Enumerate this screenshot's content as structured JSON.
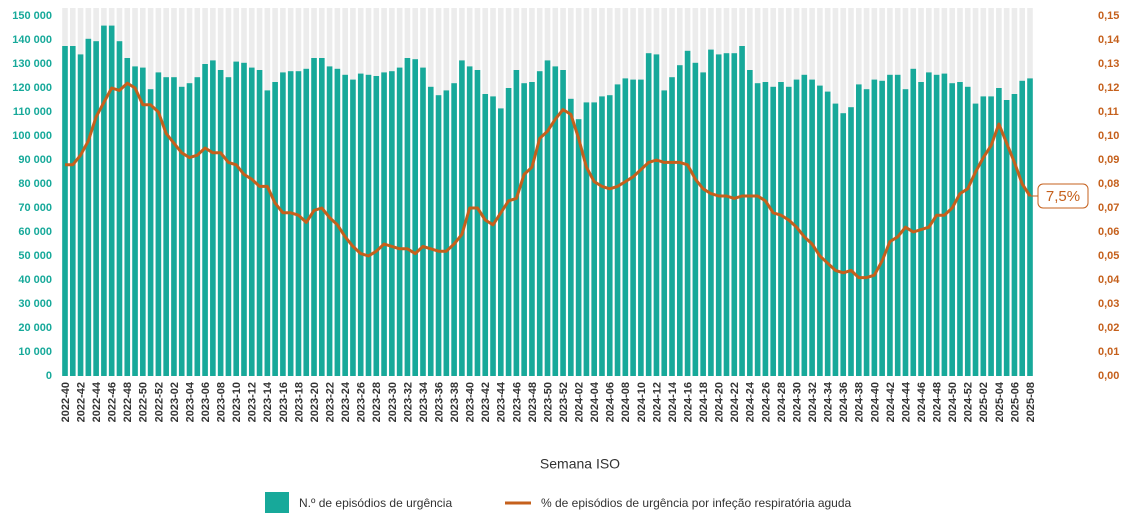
{
  "chart_data": {
    "type": "bar-line",
    "x_label": "Semana ISO",
    "categories": [
      "2022-40",
      null,
      "2022-42",
      null,
      "2022-44",
      null,
      "2022-46",
      null,
      "2022-48",
      null,
      "2022-50",
      null,
      "2022-52",
      null,
      "2023-02",
      null,
      "2023-04",
      null,
      "2023-06",
      null,
      "2023-08",
      null,
      "2023-10",
      null,
      "2023-12",
      null,
      "2023-14",
      null,
      "2023-16",
      null,
      "2023-18",
      null,
      "2023-20",
      null,
      "2023-22",
      null,
      "2023-24",
      null,
      "2023-26",
      null,
      "2023-28",
      null,
      "2023-30",
      null,
      "2023-32",
      null,
      "2023-34",
      null,
      "2023-36",
      null,
      "2023-38",
      null,
      "2023-40",
      null,
      "2023-42",
      null,
      "2023-44",
      null,
      "2023-46",
      null,
      "2023-48",
      null,
      "2023-50",
      null,
      "2023-52",
      null,
      "2024-02",
      null,
      "2024-04",
      null,
      "2024-06",
      null,
      "2024-08",
      null,
      "2024-10",
      null,
      "2024-12",
      null,
      "2024-14",
      null,
      "2024-16",
      null,
      "2024-18",
      null,
      "2024-20",
      null,
      "2024-22",
      null,
      "2024-24",
      null,
      "2024-26",
      null,
      "2024-28",
      null,
      "2024-30",
      null,
      "2024-32",
      null,
      "2024-34",
      null,
      "2024-36",
      null,
      "2024-38",
      null,
      "2024-40",
      null,
      "2024-42",
      null,
      "2024-44",
      null,
      "2024-46",
      null,
      "2024-48",
      null,
      "2024-50",
      null,
      "2024-52",
      null,
      "2025-02",
      null,
      "2025-04",
      null,
      "2025-06",
      null,
      "2025-08"
    ],
    "series": [
      {
        "name": "N.º de episódios de urgência",
        "type": "bar",
        "color": "#17a99a",
        "values": [
          137500,
          137500,
          134000,
          140500,
          139500,
          146000,
          146000,
          139500,
          132500,
          129000,
          128500,
          119500,
          126500,
          124500,
          124500,
          120500,
          122000,
          124500,
          130000,
          131500,
          127500,
          124500,
          131000,
          130500,
          128500,
          127500,
          119000,
          122500,
          126500,
          127000,
          127000,
          128000,
          132500,
          132500,
          129000,
          128000,
          125500,
          123500,
          126000,
          125500,
          125000,
          126500,
          127000,
          128500,
          132500,
          132000,
          128500,
          120500,
          117000,
          119000,
          122000,
          131500,
          129000,
          127500,
          117500,
          116500,
          111500,
          120000,
          127500,
          122000,
          122500,
          127000,
          131500,
          129000,
          127500,
          115500,
          107000,
          114000,
          114000,
          116500,
          117000,
          121500,
          124000,
          123500,
          123500,
          134500,
          134000,
          119000,
          124500,
          129500,
          135500,
          130500,
          126500,
          136000,
          134000,
          134500,
          134500,
          137500,
          127500,
          122000,
          122500,
          120500,
          122500,
          120500,
          123500,
          125500,
          123500,
          121000,
          118500,
          113500,
          109500,
          112000,
          121500,
          119500,
          123500,
          123000,
          125500,
          125500,
          119500,
          128000,
          122500,
          126500,
          125500,
          126000,
          122000,
          122500,
          120500,
          113500,
          116500,
          116500,
          120000,
          115000,
          117500,
          123000,
          124000
        ]
      },
      {
        "name": "% de episódios de urgência por infeção respiratória aguda",
        "type": "line",
        "axis": "y2",
        "color": "#c5601c",
        "end_label": "7,5%",
        "values": [
          0.088,
          0.088,
          0.092,
          0.098,
          0.108,
          0.114,
          0.12,
          0.119,
          0.122,
          0.12,
          0.113,
          0.113,
          0.11,
          0.101,
          0.097,
          0.093,
          0.091,
          0.092,
          0.095,
          0.093,
          0.093,
          0.089,
          0.088,
          0.084,
          0.082,
          0.079,
          0.079,
          0.072,
          0.068,
          0.068,
          0.067,
          0.064,
          0.069,
          0.07,
          0.066,
          0.063,
          0.058,
          0.054,
          0.051,
          0.05,
          0.052,
          0.055,
          0.054,
          0.053,
          0.053,
          0.051,
          0.054,
          0.053,
          0.052,
          0.052,
          0.055,
          0.059,
          0.07,
          0.07,
          0.065,
          0.063,
          0.068,
          0.073,
          0.074,
          0.084,
          0.087,
          0.099,
          0.102,
          0.107,
          0.111,
          0.109,
          0.099,
          0.087,
          0.081,
          0.079,
          0.078,
          0.079,
          0.081,
          0.083,
          0.086,
          0.089,
          0.09,
          0.089,
          0.089,
          0.089,
          0.088,
          0.082,
          0.078,
          0.076,
          0.075,
          0.075,
          0.074,
          0.075,
          0.075,
          0.075,
          0.073,
          0.068,
          0.067,
          0.065,
          0.062,
          0.058,
          0.055,
          0.05,
          0.047,
          0.044,
          0.043,
          0.044,
          0.041,
          0.041,
          0.042,
          0.048,
          0.056,
          0.058,
          0.062,
          0.06,
          0.061,
          0.062,
          0.067,
          0.067,
          0.07,
          0.076,
          0.078,
          0.085,
          0.091,
          0.096,
          0.105,
          0.097,
          0.089,
          0.08,
          0.075
        ]
      }
    ],
    "ylim": [
      0,
      150000
    ],
    "yticks": [
      0,
      {
        "value": 10000,
        "label": "10 000"
      },
      {
        "value": 20000,
        "label": "20 000"
      },
      {
        "value": 30000,
        "label": "30 000"
      },
      {
        "value": 40000,
        "label": "40 000"
      },
      {
        "value": 50000,
        "label": "50 000"
      },
      {
        "value": 60000,
        "label": "60 000"
      },
      {
        "value": 70000,
        "label": "70 000"
      },
      {
        "value": 80000,
        "label": "80 000"
      },
      {
        "value": 90000,
        "label": "90 000"
      },
      {
        "value": 100000,
        "label": "100 000"
      },
      {
        "value": 110000,
        "label": "110 000"
      },
      {
        "value": 120000,
        "label": "120 000"
      },
      {
        "value": 130000,
        "label": "130 000"
      },
      {
        "value": 140000,
        "label": "140 000"
      },
      {
        "value": 150000,
        "label": "150 000"
      }
    ],
    "y2lim": [
      0,
      0.15
    ],
    "y2ticks": [
      {
        "value": 0,
        "label": "0,00"
      },
      {
        "value": 0.01,
        "label": "0,01"
      },
      {
        "value": 0.02,
        "label": "0,02"
      },
      {
        "value": 0.03,
        "label": "0,03"
      },
      {
        "value": 0.04,
        "label": "0,04"
      },
      {
        "value": 0.05,
        "label": "0,05"
      },
      {
        "value": 0.06,
        "label": "0,06"
      },
      {
        "value": 0.07,
        "label": "0,07"
      },
      {
        "value": 0.08,
        "label": "0,08"
      },
      {
        "value": 0.09,
        "label": "0,09"
      },
      {
        "value": 0.1,
        "label": "0,10"
      },
      {
        "value": 0.11,
        "label": "0,11"
      },
      {
        "value": 0.12,
        "label": "0,12"
      },
      {
        "value": 0.13,
        "label": "0,13"
      },
      {
        "value": 0.14,
        "label": "0,14"
      },
      {
        "value": 0.15,
        "label": "0,15"
      }
    ]
  }
}
